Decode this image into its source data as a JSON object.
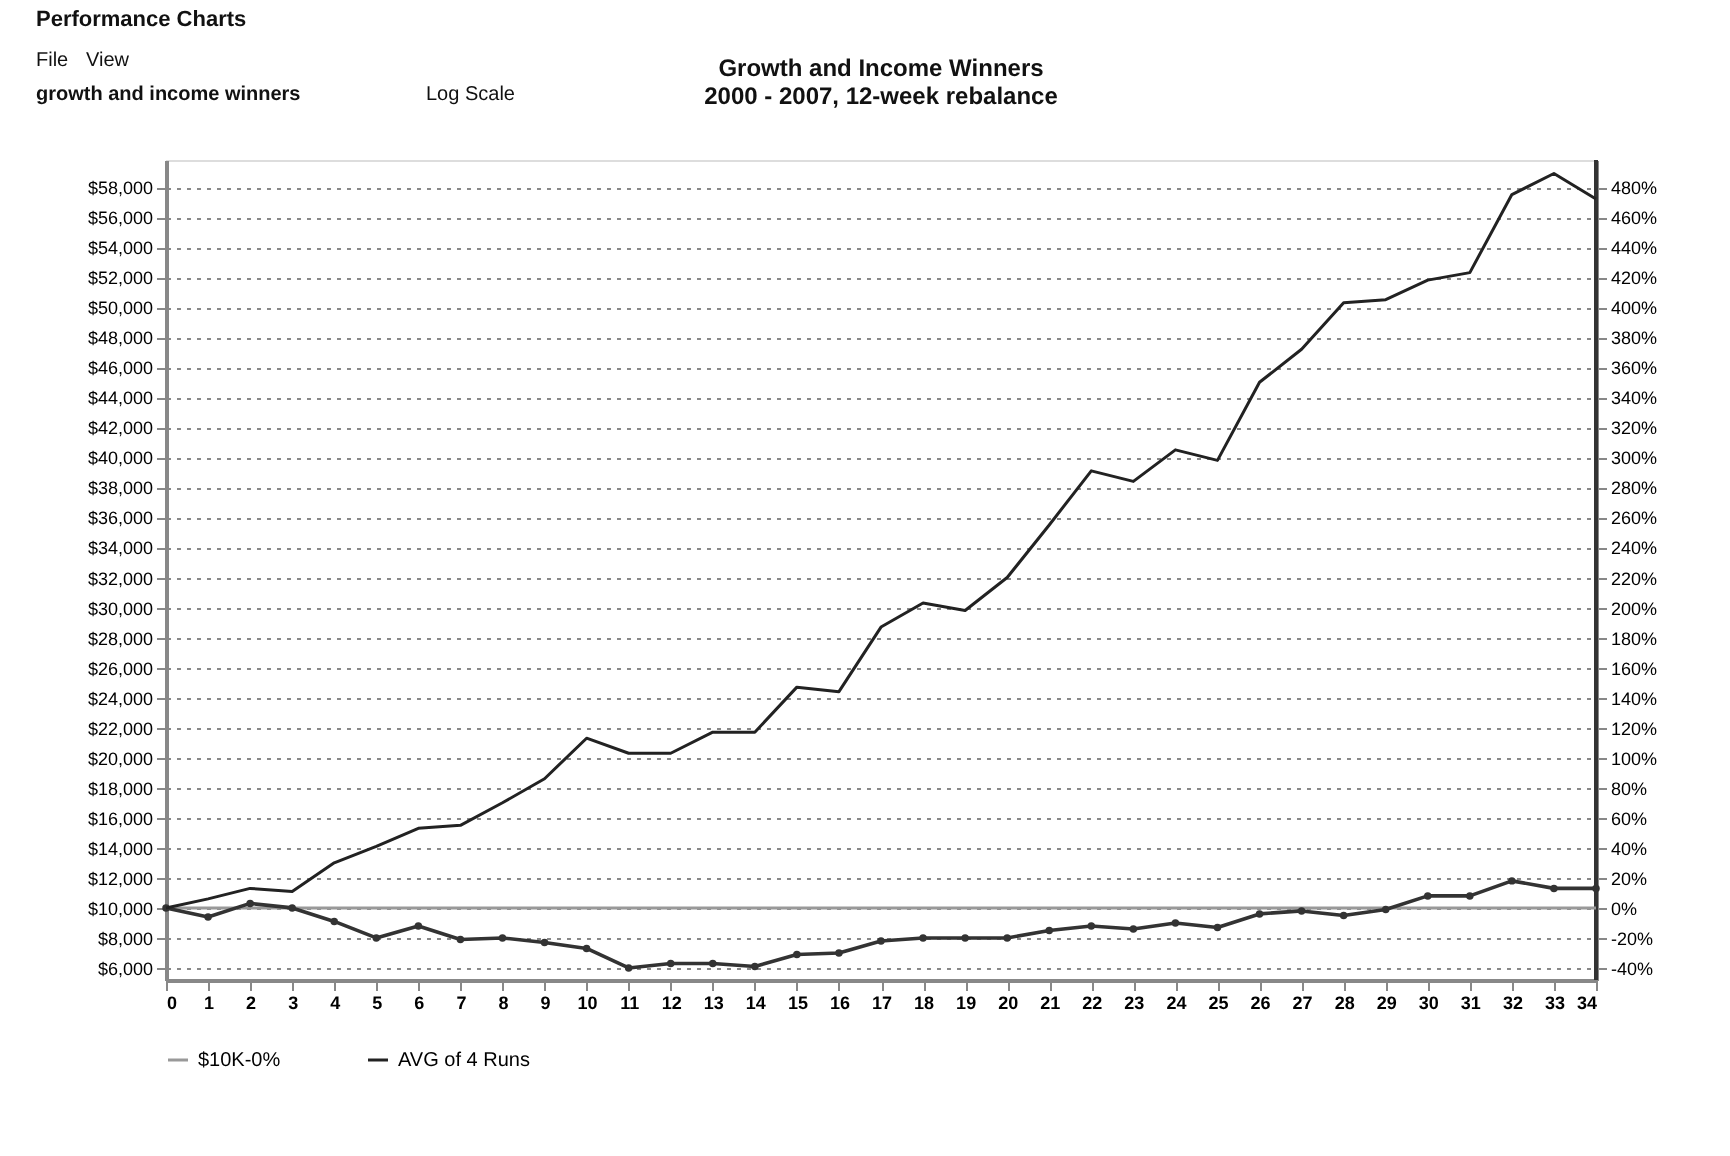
{
  "chart_data": {
    "type": "line",
    "title": "Growth and Income Winners",
    "subtitle": "2000 - 2007, 12-week rebalance",
    "annotations": [
      "Performance Charts",
      "File",
      "View",
      "growth and income winners",
      "Log Scale"
    ],
    "x": [
      0,
      1,
      2,
      3,
      4,
      5,
      6,
      7,
      8,
      9,
      10,
      11,
      12,
      13,
      14,
      15,
      16,
      17,
      18,
      19,
      20,
      21,
      22,
      23,
      24,
      25,
      26,
      27,
      28,
      29,
      30,
      31,
      32,
      33,
      34
    ],
    "xlim": [
      0,
      34
    ],
    "xticks": [
      0,
      1,
      2,
      3,
      4,
      5,
      6,
      7,
      8,
      9,
      10,
      11,
      12,
      13,
      14,
      15,
      16,
      17,
      18,
      19,
      20,
      21,
      22,
      23,
      24,
      25,
      26,
      27,
      28,
      29,
      30,
      31,
      32,
      33,
      34
    ],
    "ylim": [
      5200,
      59800
    ],
    "yticks": [
      {
        "value": 6000,
        "label": "$6,000"
      },
      {
        "value": 8000,
        "label": "$8,000"
      },
      {
        "value": 10000,
        "label": "$10,000"
      },
      {
        "value": 12000,
        "label": "$12,000"
      },
      {
        "value": 14000,
        "label": "$14,000"
      },
      {
        "value": 16000,
        "label": "$16,000"
      },
      {
        "value": 18000,
        "label": "$18,000"
      },
      {
        "value": 20000,
        "label": "$20,000"
      },
      {
        "value": 22000,
        "label": "$22,000"
      },
      {
        "value": 24000,
        "label": "$24,000"
      },
      {
        "value": 26000,
        "label": "$26,000"
      },
      {
        "value": 28000,
        "label": "$28,000"
      },
      {
        "value": 30000,
        "label": "$30,000"
      },
      {
        "value": 32000,
        "label": "$32,000"
      },
      {
        "value": 34000,
        "label": "$34,000"
      },
      {
        "value": 36000,
        "label": "$36,000"
      },
      {
        "value": 38000,
        "label": "$38,000"
      },
      {
        "value": 40000,
        "label": "$40,000"
      },
      {
        "value": 42000,
        "label": "$42,000"
      },
      {
        "value": 44000,
        "label": "$44,000"
      },
      {
        "value": 46000,
        "label": "$46,000"
      },
      {
        "value": 48000,
        "label": "$48,000"
      },
      {
        "value": 50000,
        "label": "$50,000"
      },
      {
        "value": 52000,
        "label": "$52,000"
      },
      {
        "value": 54000,
        "label": "$54,000"
      },
      {
        "value": 56000,
        "label": "$56,000"
      },
      {
        "value": 58000,
        "label": "$58,000"
      }
    ],
    "y2lim": [
      -48,
      498
    ],
    "y2ticks": [
      {
        "value": -40,
        "label": "-40%"
      },
      {
        "value": -20,
        "label": "-20%"
      },
      {
        "value": 0,
        "label": "0%"
      },
      {
        "value": 20,
        "label": "20%"
      },
      {
        "value": 40,
        "label": "40%"
      },
      {
        "value": 60,
        "label": "60%"
      },
      {
        "value": 80,
        "label": "80%"
      },
      {
        "value": 100,
        "label": "100%"
      },
      {
        "value": 120,
        "label": "120%"
      },
      {
        "value": 140,
        "label": "140%"
      },
      {
        "value": 160,
        "label": "160%"
      },
      {
        "value": 180,
        "label": "180%"
      },
      {
        "value": 200,
        "label": "200%"
      },
      {
        "value": 220,
        "label": "220%"
      },
      {
        "value": 240,
        "label": "240%"
      },
      {
        "value": 260,
        "label": "260%"
      },
      {
        "value": 280,
        "label": "280%"
      },
      {
        "value": 300,
        "label": "300%"
      },
      {
        "value": 320,
        "label": "320%"
      },
      {
        "value": 340,
        "label": "340%"
      },
      {
        "value": 360,
        "label": "360%"
      },
      {
        "value": 380,
        "label": "380%"
      },
      {
        "value": 400,
        "label": "400%"
      },
      {
        "value": 420,
        "label": "420%"
      },
      {
        "value": 440,
        "label": "440%"
      },
      {
        "value": 460,
        "label": "460%"
      },
      {
        "value": 480,
        "label": "480%"
      }
    ],
    "grid": "y",
    "legend": "bottom",
    "line_style": "solid",
    "series": [
      {
        "name": "$10K-0%",
        "color": "#999999",
        "marker": "none",
        "values": [
          10000,
          10000,
          10000,
          10000,
          10000,
          10000,
          10000,
          10000,
          10000,
          10000,
          10000,
          10000,
          10000,
          10000,
          10000,
          10000,
          10000,
          10000,
          10000,
          10000,
          10000,
          10000,
          10000,
          10000,
          10000,
          10000,
          10000,
          10000,
          10000,
          10000,
          10000,
          10000,
          10000,
          10000,
          10000
        ]
      },
      {
        "color": "#333333",
        "marker": "circle",
        "values": [
          10000,
          9400,
          10300,
          10000,
          9100,
          8000,
          8800,
          7900,
          8000,
          7700,
          7300,
          6000,
          6300,
          6300,
          6100,
          6900,
          7000,
          7800,
          8000,
          8000,
          8000,
          8500,
          8800,
          8600,
          9000,
          8700,
          9600,
          9800,
          9500,
          9900,
          10800,
          10800,
          11800,
          11300,
          11300
        ]
      },
      {
        "name": "AVG of 4 Runs",
        "color": "#222222",
        "marker": "none",
        "values": [
          10000,
          10600,
          11300,
          11100,
          13000,
          14100,
          15300,
          15500,
          17000,
          18600,
          21300,
          20300,
          20300,
          21700,
          21700,
          24700,
          24400,
          28700,
          30300,
          29800,
          32000,
          35500,
          39100,
          38400,
          40500,
          39800,
          45000,
          47200,
          50300,
          50500,
          51800,
          52300,
          57500,
          58900,
          57200
        ]
      }
    ]
  }
}
